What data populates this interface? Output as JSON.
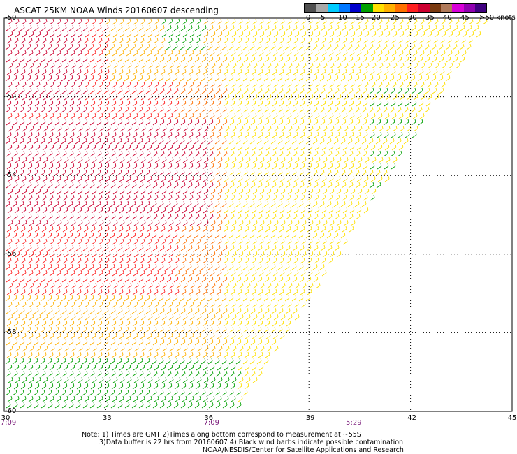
{
  "title": "ASCAT 25KM NOAA Winds 20160607 descending",
  "colorbar": {
    "labels": [
      "0",
      "5",
      "10",
      "15",
      "20",
      "25",
      "30",
      "35",
      "40",
      "45",
      ">50 knots"
    ],
    "colors": [
      "#505050",
      "#a8a8a8",
      "#00ccff",
      "#0077ff",
      "#0000cc",
      "#00a000",
      "#ffe000",
      "#ffb000",
      "#ff7000",
      "#ff2020",
      "#cc0030",
      "#7a3a10",
      "#b07a5a",
      "#d800d8",
      "#9000b0",
      "#400080"
    ]
  },
  "map": {
    "lon_ticks": [
      "30",
      "33",
      "36",
      "39",
      "42",
      "45"
    ],
    "lat_ticks": [
      "-50",
      "-52",
      "-54",
      "-56",
      "-58",
      "-60"
    ],
    "lon_range": [
      30,
      45
    ],
    "lat_range": [
      -60,
      -50
    ],
    "grid": true,
    "times": [
      "7:09",
      "7:09",
      "5:29"
    ],
    "time_lons": [
      30,
      36,
      40.2
    ]
  },
  "notes": {
    "line1": "Note: 1) Times are GMT 2)Times along bottom correspond to measurement at ~55S",
    "line2": "3)Data buffer is 22 hrs from 20160607 4) Black wind barbs indicate possible contamination",
    "line3": "NOAA/NESDIS/Center for Satellite Applications and Research"
  }
}
